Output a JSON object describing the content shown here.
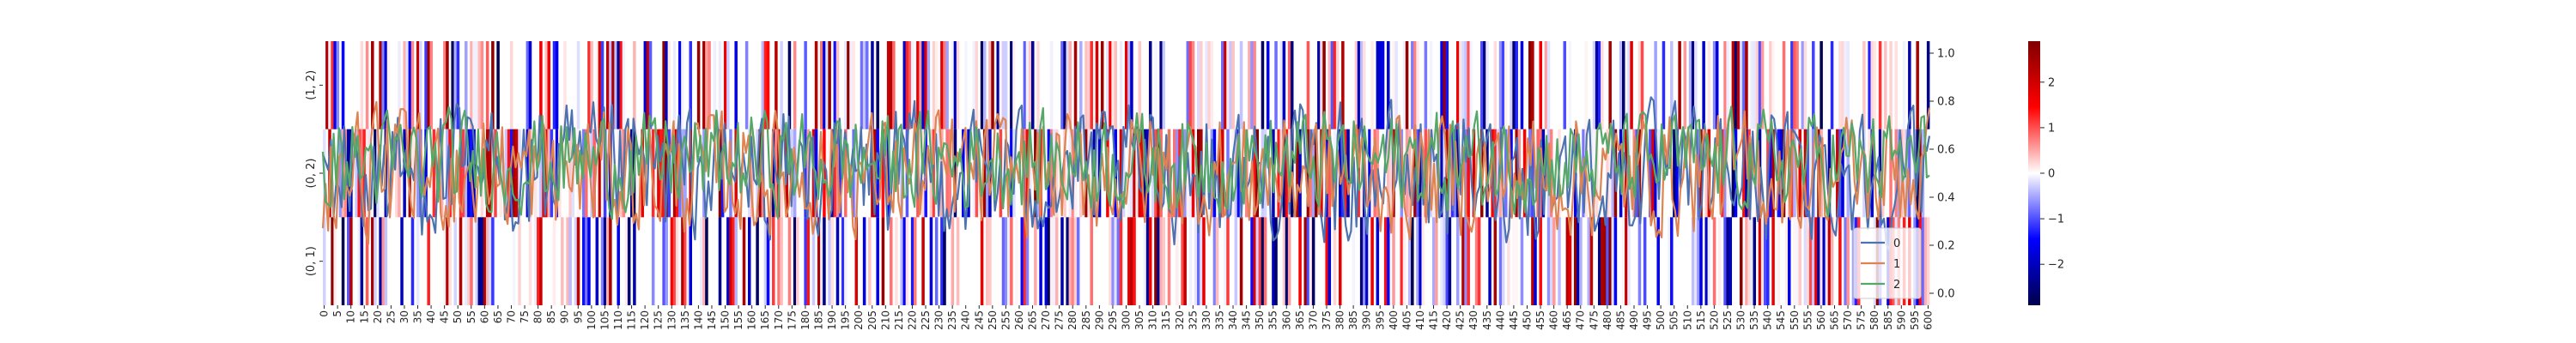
{
  "chart_data": {
    "type": "line",
    "title": "",
    "heatmap": {
      "rows": [
        "(1, 2)",
        "(0, 2)",
        "(0, 1)"
      ],
      "columns_count": 601,
      "x_tick_labels": [
        "0",
        "5",
        "10",
        "15",
        "20",
        "25",
        "30",
        "35",
        "40",
        "45",
        "50",
        "55",
        "60",
        "65",
        "70",
        "75",
        "80",
        "85",
        "90",
        "95",
        "100",
        "105",
        "110",
        "115",
        "120",
        "125",
        "130",
        "135",
        "140",
        "145",
        "150",
        "155",
        "160",
        "165",
        "170",
        "175",
        "180",
        "185",
        "190",
        "195",
        "200",
        "205",
        "210",
        "215",
        "220",
        "225",
        "230",
        "235",
        "240",
        "245",
        "250",
        "255",
        "260",
        "265",
        "270",
        "275",
        "280",
        "285",
        "290",
        "295",
        "300",
        "305",
        "310",
        "315",
        "320",
        "325",
        "330",
        "335",
        "340",
        "345",
        "350",
        "355",
        "360",
        "365",
        "370",
        "375",
        "380",
        "385",
        "390",
        "395",
        "400",
        "405",
        "410",
        "415",
        "420",
        "425",
        "430",
        "435",
        "440",
        "445",
        "450",
        "455",
        "460",
        "465",
        "470",
        "475",
        "480",
        "485",
        "490",
        "495",
        "500",
        "505",
        "510",
        "515",
        "520",
        "525",
        "530",
        "535",
        "540",
        "545",
        "550",
        "555",
        "560",
        "565",
        "570",
        "575",
        "580",
        "585",
        "590",
        "595",
        "600"
      ],
      "colormap": "seismic",
      "value_range": [
        -2.9,
        2.9
      ],
      "colorbar_ticks": [
        "−2",
        "−1",
        "0",
        "1",
        "2"
      ]
    },
    "line_plot": {
      "x_range": [
        0,
        600
      ],
      "y_range": [
        -0.05,
        1.05
      ],
      "y_ticks": [
        "0.0",
        "0.2",
        "0.4",
        "0.6",
        "0.8",
        "1.0"
      ],
      "y_axis_position": "right",
      "legend_position": "lower-right",
      "series": [
        {
          "name": "0",
          "color": "#4c72b0",
          "mean": 0.5,
          "spread": 0.16
        },
        {
          "name": "1",
          "color": "#dd8452",
          "mean": 0.5,
          "spread": 0.15
        },
        {
          "name": "2",
          "color": "#55a868",
          "mean": 0.55,
          "spread": 0.12
        }
      ]
    },
    "grid": false
  }
}
